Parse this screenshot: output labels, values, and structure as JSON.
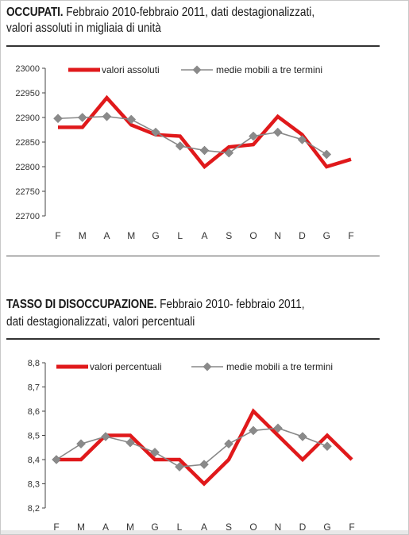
{
  "chart1": {
    "title_bold": "OCCUPATI.",
    "title_rest": " Febbraio 2010-febbraio 2011, dati destagionalizzati,",
    "subtitle": "valori assoluti in migliaia di unità"
  },
  "chart2": {
    "title_bold": "TASSO DI DISOCCUPAZIONE.",
    "title_rest": " Febbraio 2010- febbraio 2011,",
    "subtitle": "dati destagionalizzati, valori percentuali"
  },
  "chart_data": [
    {
      "type": "line",
      "categories": [
        "F",
        "M",
        "A",
        "M",
        "G",
        "L",
        "A",
        "S",
        "O",
        "N",
        "D",
        "G",
        "F"
      ],
      "ylim": [
        22700,
        23000
      ],
      "yticks": [
        "23000",
        "22950",
        "22900",
        "22850",
        "22800",
        "22750",
        "22700"
      ],
      "series": [
        {
          "name": "valori assoluti",
          "color": "#e0191b",
          "values": [
            22880,
            22880,
            22940,
            22885,
            22865,
            22862,
            22800,
            22840,
            22845,
            22902,
            22865,
            22800,
            22815
          ]
        },
        {
          "name": "medie mobili a tre termini",
          "color": "#888888",
          "values": [
            22898,
            22900,
            22902,
            22896,
            22870,
            22842,
            22833,
            22828,
            22862,
            22870,
            22855,
            22825,
            null
          ]
        }
      ],
      "grid": false,
      "legend": "top"
    },
    {
      "type": "line",
      "categories": [
        "F",
        "M",
        "A",
        "M",
        "G",
        "L",
        "A",
        "S",
        "O",
        "N",
        "D",
        "G",
        "F"
      ],
      "ylim": [
        8.2,
        8.8
      ],
      "yticks": [
        "8,8",
        "8,7",
        "8,6",
        "8,5",
        "8,4",
        "8,3",
        "8,2"
      ],
      "series": [
        {
          "name": "valori percentuali",
          "color": "#e0191b",
          "values": [
            8.4,
            8.4,
            8.5,
            8.5,
            8.4,
            8.4,
            8.3,
            8.4,
            8.6,
            8.5,
            8.4,
            8.5,
            8.4
          ]
        },
        {
          "name": "medie mobili a tre termini",
          "color": "#888888",
          "values": [
            8.4,
            8.465,
            8.495,
            8.47,
            8.43,
            8.37,
            8.38,
            8.465,
            8.52,
            8.53,
            8.495,
            8.455,
            null
          ]
        }
      ],
      "grid": false,
      "legend": "top"
    }
  ]
}
